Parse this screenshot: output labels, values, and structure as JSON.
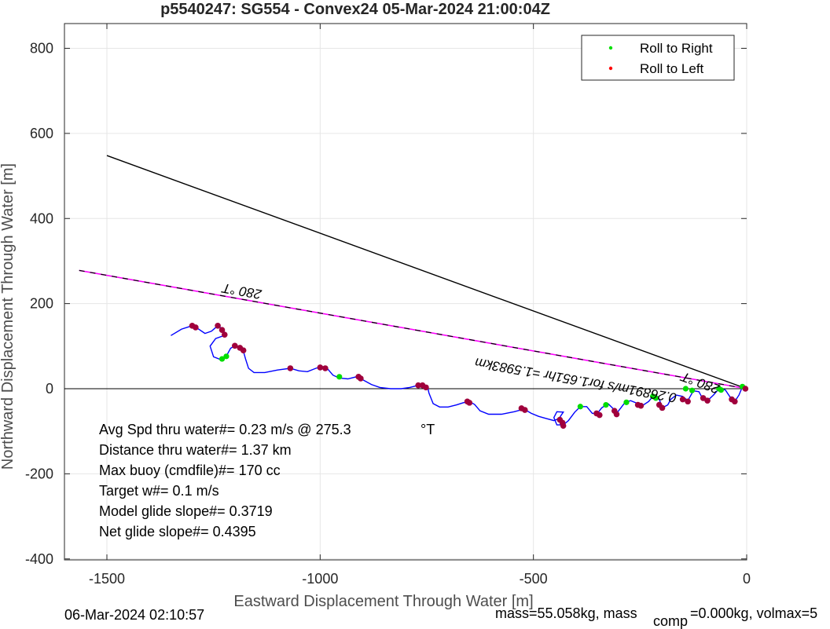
{
  "chart_data": {
    "type": "scatter",
    "title": "p5540247: SG554 - Convex24 05-Mar-2024 21:00:04Z",
    "xlabel": "Eastward Displacement Through Water [m]",
    "ylabel": "Northward Displacement Through Water [m]",
    "xlim": [
      -1600,
      0
    ],
    "ylim": [
      -400,
      860
    ],
    "xticks": [
      -1500,
      -1000,
      -500,
      0
    ],
    "yticks": [
      -400,
      -200,
      0,
      200,
      400,
      600,
      800
    ],
    "grid": true,
    "legend_position": "top-right",
    "legend": [
      {
        "label": "Roll to Right",
        "color": "#00e000"
      },
      {
        "label": "Roll to Left",
        "color": "#ff0000"
      }
    ],
    "track": [
      [
        -1350,
        125
      ],
      [
        -1325,
        140
      ],
      [
        -1300,
        148
      ],
      [
        -1285,
        140
      ],
      [
        -1270,
        130
      ],
      [
        -1255,
        135
      ],
      [
        -1240,
        148
      ],
      [
        -1225,
        138
      ],
      [
        -1225,
        125
      ],
      [
        -1245,
        118
      ],
      [
        -1258,
        100
      ],
      [
        -1250,
        75
      ],
      [
        -1232,
        68
      ],
      [
        -1218,
        80
      ],
      [
        -1210,
        95
      ],
      [
        -1200,
        101
      ],
      [
        -1182,
        95
      ],
      [
        -1175,
        70
      ],
      [
        -1168,
        48
      ],
      [
        -1155,
        38
      ],
      [
        -1130,
        38
      ],
      [
        -1100,
        44
      ],
      [
        -1070,
        48
      ],
      [
        -1050,
        42
      ],
      [
        -1030,
        40
      ],
      [
        -1010,
        48
      ],
      [
        -995,
        52
      ],
      [
        -982,
        46
      ],
      [
        -970,
        32
      ],
      [
        -955,
        25
      ],
      [
        -935,
        23
      ],
      [
        -915,
        28
      ],
      [
        -898,
        20
      ],
      [
        -880,
        10
      ],
      [
        -860,
        3
      ],
      [
        -835,
        0
      ],
      [
        -810,
        0
      ],
      [
        -790,
        3
      ],
      [
        -770,
        8
      ],
      [
        -757,
        10
      ],
      [
        -748,
        5
      ],
      [
        -745,
        -10
      ],
      [
        -735,
        -35
      ],
      [
        -720,
        -43
      ],
      [
        -700,
        -43
      ],
      [
        -680,
        -38
      ],
      [
        -665,
        -33
      ],
      [
        -650,
        -30
      ],
      [
        -638,
        -37
      ],
      [
        -625,
        -52
      ],
      [
        -605,
        -60
      ],
      [
        -575,
        -60
      ],
      [
        -545,
        -54
      ],
      [
        -522,
        -48
      ],
      [
        -505,
        -58
      ],
      [
        -488,
        -65
      ],
      [
        -470,
        -70
      ],
      [
        -452,
        -75
      ],
      [
        -440,
        -70
      ],
      [
        -430,
        -55
      ],
      [
        -445,
        -54
      ],
      [
        -452,
        -68
      ],
      [
        -445,
        -85
      ],
      [
        -430,
        -85
      ],
      [
        -418,
        -75
      ],
      [
        -403,
        -55
      ],
      [
        -390,
        -42
      ],
      [
        -375,
        -42
      ],
      [
        -362,
        -58
      ],
      [
        -350,
        -58
      ],
      [
        -340,
        -45
      ],
      [
        -325,
        -35
      ],
      [
        -315,
        -45
      ],
      [
        -305,
        -58
      ],
      [
        -295,
        -45
      ],
      [
        -285,
        -32
      ],
      [
        -272,
        -28
      ],
      [
        -255,
        -35
      ],
      [
        -245,
        -40
      ],
      [
        -230,
        -30
      ],
      [
        -220,
        -18
      ],
      [
        -205,
        -25
      ],
      [
        -198,
        -45
      ],
      [
        -185,
        -38
      ],
      [
        -178,
        -25
      ],
      [
        -165,
        -15
      ],
      [
        -150,
        -18
      ],
      [
        -138,
        -28
      ],
      [
        -125,
        -5
      ],
      [
        -112,
        -7
      ],
      [
        -105,
        -20
      ],
      [
        -92,
        -28
      ],
      [
        -78,
        -15
      ],
      [
        -65,
        0
      ],
      [
        -50,
        -3
      ],
      [
        -40,
        -18
      ],
      [
        -28,
        -30
      ],
      [
        -18,
        -15
      ],
      [
        -10,
        5
      ],
      [
        0,
        0
      ]
    ],
    "roll_right": [
      [
        -1230,
        70
      ],
      [
        -1220,
        76
      ],
      [
        -955,
        28
      ],
      [
        -390,
        -42
      ],
      [
        -330,
        -38
      ],
      [
        -282,
        -32
      ],
      [
        -220,
        -18
      ],
      [
        -213,
        -22
      ],
      [
        -143,
        0
      ],
      [
        -128,
        -4
      ],
      [
        -65,
        0
      ],
      [
        -60,
        -3
      ],
      [
        -10,
        5
      ]
    ],
    "roll_left": [
      [
        -1300,
        148
      ],
      [
        -1292,
        144
      ],
      [
        -1240,
        148
      ],
      [
        -1230,
        138
      ],
      [
        -1224,
        127
      ],
      [
        -1200,
        101
      ],
      [
        -1188,
        96
      ],
      [
        -1180,
        90
      ],
      [
        -1070,
        48
      ],
      [
        -1000,
        50
      ],
      [
        -988,
        48
      ],
      [
        -910,
        28
      ],
      [
        -905,
        24
      ],
      [
        -770,
        8
      ],
      [
        -760,
        8
      ],
      [
        -752,
        3
      ],
      [
        -655,
        -30
      ],
      [
        -650,
        -33
      ],
      [
        -528,
        -46
      ],
      [
        -520,
        -50
      ],
      [
        -438,
        -73
      ],
      [
        -432,
        -80
      ],
      [
        -430,
        -87
      ],
      [
        -352,
        -58
      ],
      [
        -345,
        -62
      ],
      [
        -310,
        -52
      ],
      [
        -305,
        -60
      ],
      [
        -255,
        -38
      ],
      [
        -248,
        -40
      ],
      [
        -205,
        -38
      ],
      [
        -198,
        -45
      ],
      [
        -150,
        -25
      ],
      [
        -138,
        -30
      ],
      [
        -102,
        -22
      ],
      [
        -92,
        -28
      ],
      [
        -35,
        -25
      ],
      [
        -28,
        -30
      ],
      [
        -3,
        0
      ]
    ],
    "heading_line": {
      "start": [
        -1500,
        548
      ],
      "end": [
        0,
        0
      ]
    },
    "net_line": {
      "start": [
        -1565,
        278
      ],
      "end": [
        0,
        0
      ]
    },
    "annotations": {
      "heading_left": "280 °T",
      "heading_right": "280 °T",
      "speed_line": "0.26891m/s for1.651hr =1.5983km"
    },
    "stats": [
      "Avg Spd thru water#=  0.23 m/s @ 275.3",
      "Distance thru water#=  1.37 km",
      "Max buoy (cmdfile)#= 170 cc",
      "Target w#= 0.1 m/s",
      "Model glide slope#= 0.3719",
      "Net glide slope#= 0.4395"
    ],
    "stats_unit": "°T",
    "footer": {
      "timestamp": "06-Mar-2024 02:10:57",
      "mass": "mass=55.058kg, mass",
      "comp": "comp",
      "volmax": "=0.000kg, volmax=5"
    }
  }
}
